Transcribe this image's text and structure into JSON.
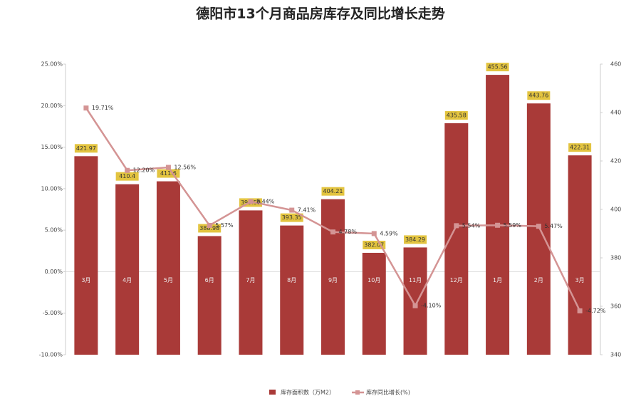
{
  "chart_data": {
    "type": "bar-line",
    "title": "德阳市13个月商品房库存及同比增长走势",
    "categories": [
      "3月",
      "4月",
      "5月",
      "6月",
      "7月",
      "8月",
      "9月",
      "10月",
      "11月",
      "12月",
      "1月",
      "2月",
      "3月"
    ],
    "series": [
      {
        "name": "库存面积数（万M2）",
        "type": "bar",
        "axis": "y2",
        "color": "#a93a38",
        "values": [
          421.97,
          410.4,
          411.6,
          388.98,
          399.59,
          393.35,
          404.21,
          382.07,
          384.29,
          435.58,
          455.56,
          443.76,
          422.31
        ]
      },
      {
        "name": "库存同比增长(%)",
        "type": "line",
        "axis": "y",
        "color": "#d49494",
        "values": [
          19.71,
          12.2,
          12.56,
          5.57,
          8.44,
          7.41,
          4.78,
          4.59,
          -4.1,
          5.54,
          5.59,
          5.47,
          -4.72
        ],
        "value_labels": [
          "19.71%",
          "12.20%",
          "12.56%",
          "5.57%",
          "8.44%",
          "7.41%",
          "4.78%",
          "4.59%",
          "-4.10%",
          "5.54%",
          "5.59%",
          "5.47%",
          "-4.72%"
        ]
      }
    ],
    "ylim": [
      -10,
      25
    ],
    "yticks": [
      {
        "value": -10,
        "label": "-10.00%"
      },
      {
        "value": -5,
        "label": "-5.00%"
      },
      {
        "value": 0,
        "label": "0.00%"
      },
      {
        "value": 5,
        "label": "5.00%"
      },
      {
        "value": 10,
        "label": "10.00%"
      },
      {
        "value": 15,
        "label": "15.00%"
      },
      {
        "value": 20,
        "label": "20.00%"
      },
      {
        "value": 25,
        "label": "25.00%"
      }
    ],
    "y2lim": [
      340,
      460
    ],
    "y2ticks": [
      340,
      360,
      380,
      400,
      420,
      440,
      460
    ],
    "legend": "bottom"
  }
}
